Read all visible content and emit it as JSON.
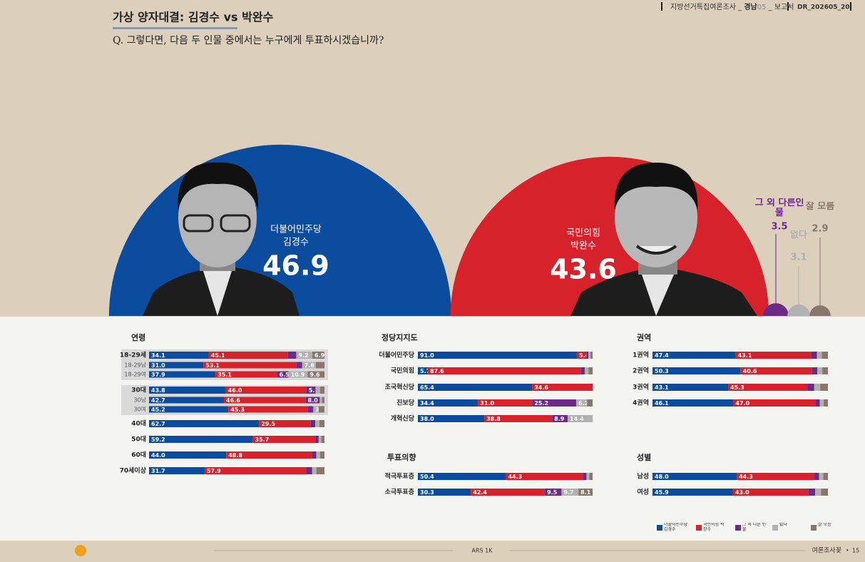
{
  "header": {
    "title": "가상 양자대결: 김경수 vs 박완수",
    "question": "Q. 그렇다면, 다음 두 인물 중에서는 누구에게 투표하시겠습니까?",
    "report_name": "지방선거특집여론조사",
    "region": "경남",
    "page_code": "05",
    "report_type": "보고서",
    "doc_id": "DR_202605_20"
  },
  "chart_data": [
    {
      "type": "semicircle",
      "categories": [
        "김경수",
        "박완수",
        "그 외 다른인물",
        "없다",
        "잘 모름"
      ],
      "parties": [
        "더불어민주당",
        "국민의힘",
        null,
        null,
        null
      ],
      "values": [
        46.9,
        43.6,
        3.5,
        3.1,
        2.9
      ],
      "colors": [
        "#0c4c9e",
        "#d7212b",
        "#6c2a86",
        "#b1b1b1",
        "#8b766e"
      ]
    },
    {
      "type": "stacked_bar",
      "title": "연령",
      "xlim": [
        0,
        100
      ],
      "categories": [
        "18-29세",
        "18-29남",
        "18-29여",
        "30대",
        "30남",
        "30여",
        "40대",
        "50대",
        "60대",
        "70세이상"
      ],
      "series": [
        {
          "name": "더불어민주당 김경수",
          "color": "#0c4c9e",
          "values": [
            34.1,
            31.0,
            37.9,
            43.8,
            42.7,
            45.2,
            62.7,
            59.2,
            44.0,
            31.7
          ],
          "value_labels": [
            "34.1",
            "31.0",
            "37.9",
            "43.8",
            "42.7",
            "45.2",
            "62.7",
            "59.2",
            "44.0",
            "31.7"
          ]
        },
        {
          "name": "국민의힘 박완수",
          "color": "#d7212b",
          "values": [
            45.1,
            53.1,
            35.1,
            46.0,
            46.6,
            45.3,
            29.5,
            35.7,
            48.8,
            57.9
          ],
          "value_labels": [
            "45.1",
            "53.1",
            "35.1",
            "46.0",
            "46.6",
            "45.3",
            "29.5",
            "35.7",
            "48.8",
            "57.9"
          ]
        },
        {
          "name": "그 외 다른 인물",
          "color": "#6c2a86",
          "values": [
            4.7,
            3.2,
            6.5,
            5.1,
            8.0,
            3.1,
            2.6,
            1.8,
            2.5,
            3.4
          ],
          "value_labels": [
            null,
            null,
            "6.5",
            "5.1",
            "8.0",
            null,
            null,
            null,
            null,
            null
          ]
        },
        {
          "name": "없다",
          "color": "#b1b1b1",
          "values": [
            9.2,
            7.8,
            10.9,
            2.6,
            1.3,
            3.0,
            2.3,
            1.5,
            2.2,
            2.4
          ],
          "value_labels": [
            "9.2",
            "7.8",
            "10.9",
            null,
            null,
            "3.0",
            null,
            null,
            null,
            null
          ]
        },
        {
          "name": "잘 모름",
          "color": "#8b766e",
          "values": [
            6.9,
            4.9,
            9.6,
            2.5,
            1.4,
            3.4,
            2.9,
            1.8,
            2.5,
            4.6
          ],
          "value_labels": [
            "6.9",
            null,
            "9.6",
            null,
            null,
            null,
            null,
            null,
            null,
            null
          ]
        }
      ]
    },
    {
      "type": "stacked_bar",
      "title": "정당지지도",
      "xlim": [
        0,
        100
      ],
      "categories": [
        "더불어민주당",
        "국민의힘",
        "조국혁신당",
        "진보당",
        "개혁신당"
      ],
      "series": [
        {
          "values": [
            91.0,
            5.7,
            65.4,
            34.4,
            38.0
          ],
          "value_labels": [
            "91.0",
            "5.7",
            "65.4",
            "34.4",
            "38.0"
          ]
        },
        {
          "values": [
            5.4,
            87.6,
            34.6,
            31.0,
            38.8
          ],
          "value_labels": [
            "5.4",
            "87.6",
            "34.6",
            "31.0",
            "38.8"
          ]
        },
        {
          "values": [
            1.2,
            2.2,
            0,
            25.2,
            8.9
          ],
          "value_labels": [
            null,
            null,
            null,
            "25.2",
            "8.9"
          ]
        },
        {
          "values": [
            1.2,
            2.2,
            0,
            6.2,
            14.4
          ],
          "value_labels": [
            null,
            null,
            null,
            "6.2",
            "14.4"
          ]
        },
        {
          "values": [
            1.2,
            2.3,
            0,
            3.2,
            0
          ],
          "value_labels": [
            null,
            null,
            null,
            null,
            null
          ]
        }
      ]
    },
    {
      "type": "stacked_bar",
      "title": "투표의향",
      "xlim": [
        0,
        100
      ],
      "categories": [
        "적극투표층",
        "소극투표층"
      ],
      "series": [
        {
          "values": [
            50.4,
            30.3
          ],
          "value_labels": [
            "50.4",
            "30.3"
          ]
        },
        {
          "values": [
            44.3,
            42.4
          ],
          "value_labels": [
            "44.3",
            "42.4"
          ]
        },
        {
          "values": [
            1.8,
            9.5
          ],
          "value_labels": [
            null,
            "9.5"
          ]
        },
        {
          "values": [
            1.6,
            9.7
          ],
          "value_labels": [
            null,
            "9.7"
          ]
        },
        {
          "values": [
            1.9,
            8.1
          ],
          "value_labels": [
            null,
            "8.1"
          ]
        }
      ]
    },
    {
      "type": "stacked_bar",
      "title": "권역",
      "xlim": [
        0,
        100
      ],
      "categories": [
        "1권역",
        "2권역",
        "3권역",
        "4권역"
      ],
      "series": [
        {
          "values": [
            47.4,
            50.3,
            43.1,
            46.1
          ],
          "value_labels": [
            "47.4",
            "50.3",
            "43.1",
            "46.1"
          ]
        },
        {
          "values": [
            43.1,
            40.6,
            45.3,
            47.0
          ],
          "value_labels": [
            "43.1",
            "40.6",
            "45.3",
            "47.0"
          ]
        },
        {
          "values": [
            3.2,
            3.0,
            3.8,
            2.3
          ],
          "value_labels": [
            null,
            null,
            null,
            null
          ]
        },
        {
          "values": [
            2.8,
            2.9,
            3.4,
            2.2
          ],
          "value_labels": [
            null,
            null,
            null,
            null
          ]
        },
        {
          "values": [
            3.5,
            3.2,
            4.4,
            2.4
          ],
          "value_labels": [
            null,
            null,
            null,
            null
          ]
        }
      ]
    },
    {
      "type": "stacked_bar",
      "title": "성별",
      "xlim": [
        0,
        100
      ],
      "categories": [
        "남성",
        "여성"
      ],
      "series": [
        {
          "values": [
            48.0,
            45.9
          ],
          "value_labels": [
            "48.0",
            "45.9"
          ]
        },
        {
          "values": [
            44.3,
            43.0
          ],
          "value_labels": [
            "44.3",
            "43.0"
          ]
        },
        {
          "values": [
            2.6,
            3.8
          ],
          "value_labels": [
            null,
            null
          ]
        },
        {
          "values": [
            2.4,
            3.4
          ],
          "value_labels": [
            null,
            null
          ]
        },
        {
          "values": [
            2.7,
            3.9
          ],
          "value_labels": [
            null,
            null
          ]
        }
      ]
    }
  ],
  "footer": {
    "method": "ARS 1K",
    "brand": "여론조사꽃",
    "page": "15"
  }
}
